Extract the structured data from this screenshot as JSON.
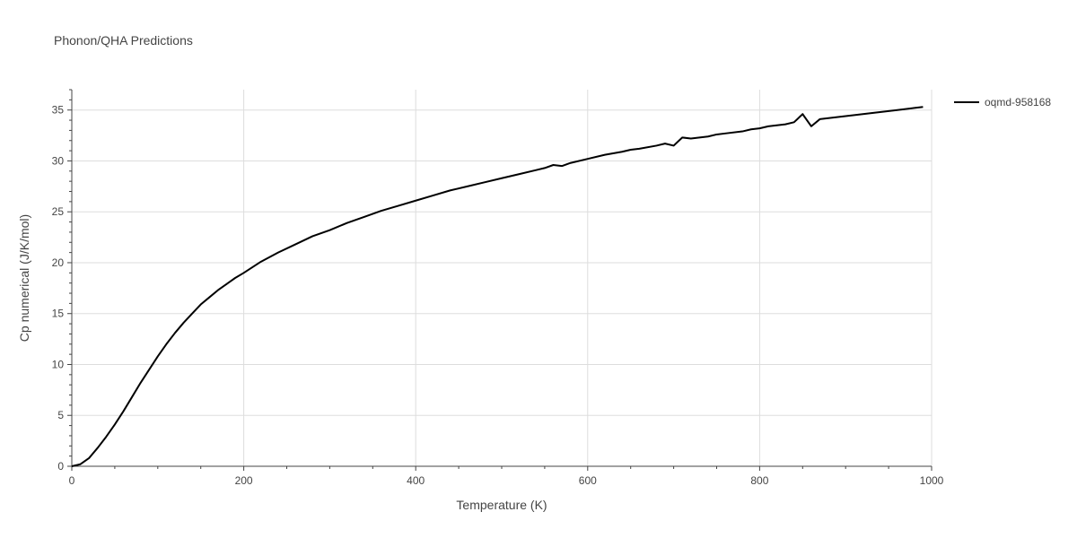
{
  "chart_data": {
    "type": "line",
    "title": "Phonon/QHA Predictions",
    "xlabel": "Temperature (K)",
    "ylabel": "Cp numerical (J/K/mol)",
    "xlim": [
      0,
      1000
    ],
    "ylim": [
      0,
      37
    ],
    "xticks": [
      0,
      200,
      400,
      600,
      800,
      1000
    ],
    "yticks": [
      0,
      5,
      10,
      15,
      20,
      25,
      30,
      35
    ],
    "grid": true,
    "legend": "top-right",
    "series": [
      {
        "name": "oqmd-958168",
        "color": "#000000",
        "x": [
          0,
          10,
          20,
          30,
          40,
          50,
          60,
          70,
          80,
          90,
          100,
          110,
          120,
          130,
          140,
          150,
          160,
          170,
          180,
          190,
          200,
          220,
          240,
          260,
          280,
          300,
          320,
          340,
          360,
          380,
          400,
          420,
          440,
          460,
          480,
          500,
          520,
          540,
          550,
          560,
          570,
          580,
          600,
          620,
          640,
          650,
          660,
          680,
          690,
          700,
          710,
          720,
          740,
          750,
          760,
          780,
          790,
          800,
          810,
          820,
          830,
          840,
          850,
          860,
          870,
          880,
          900,
          920,
          930,
          940,
          950,
          960,
          980,
          990
        ],
        "y": [
          0,
          0.2,
          0.8,
          1.8,
          2.9,
          4.1,
          5.4,
          6.8,
          8.2,
          9.5,
          10.8,
          12.0,
          13.1,
          14.1,
          15.0,
          15.9,
          16.6,
          17.3,
          17.9,
          18.5,
          19.0,
          20.1,
          21.0,
          21.8,
          22.6,
          23.2,
          23.9,
          24.5,
          25.1,
          25.6,
          26.1,
          26.6,
          27.1,
          27.5,
          27.9,
          28.3,
          28.7,
          29.1,
          29.3,
          29.6,
          29.5,
          29.8,
          30.2,
          30.6,
          30.9,
          31.1,
          31.2,
          31.5,
          31.7,
          31.5,
          32.3,
          32.2,
          32.4,
          32.6,
          32.7,
          32.9,
          33.1,
          33.2,
          33.4,
          33.5,
          33.6,
          33.8,
          34.6,
          33.4,
          34.1,
          34.2,
          34.4,
          34.6,
          34.7,
          34.8,
          34.9,
          35.0,
          35.2,
          35.3
        ]
      }
    ]
  }
}
